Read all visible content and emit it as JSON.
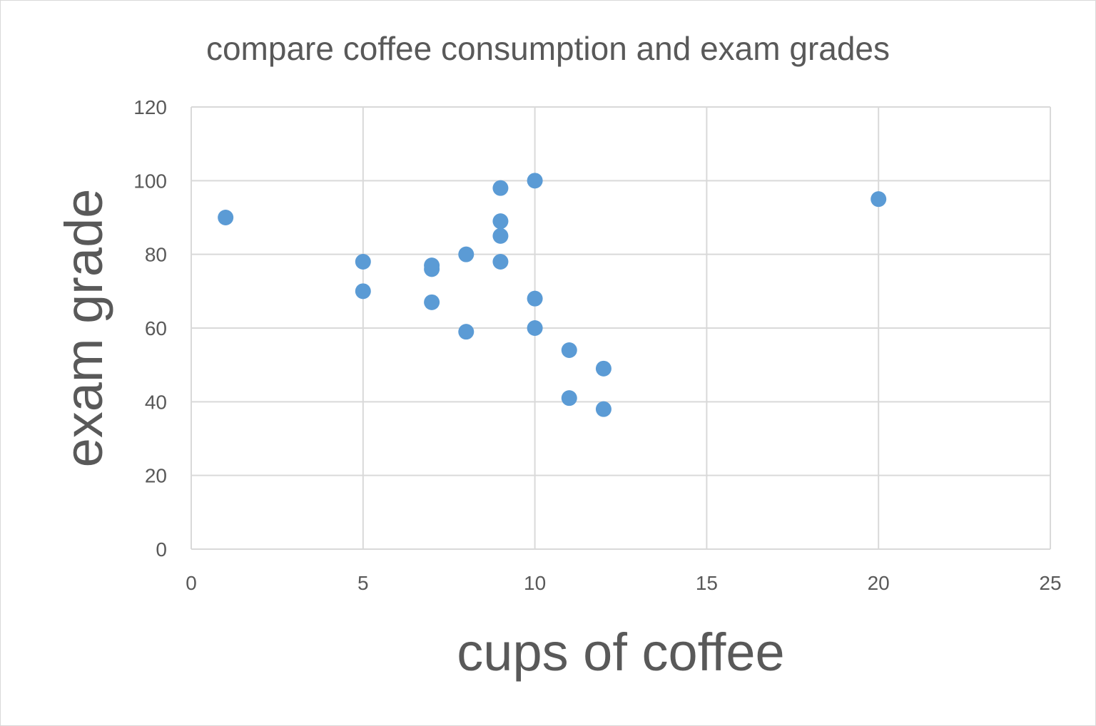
{
  "chart_data": {
    "type": "scatter",
    "title": "compare coffee consumption and exam grades",
    "xlabel": "cups of coffee",
    "ylabel": "exam grade",
    "xlim": [
      0,
      25
    ],
    "ylim": [
      0,
      120
    ],
    "xticks": [
      0,
      5,
      10,
      15,
      20,
      25
    ],
    "yticks": [
      0,
      20,
      40,
      60,
      80,
      100,
      120
    ],
    "grid": true,
    "legend": "none",
    "color": "#5b9bd5",
    "points": [
      {
        "x": 1,
        "y": 90
      },
      {
        "x": 5,
        "y": 78
      },
      {
        "x": 5,
        "y": 70
      },
      {
        "x": 7,
        "y": 77
      },
      {
        "x": 7,
        "y": 76
      },
      {
        "x": 7,
        "y": 67
      },
      {
        "x": 8,
        "y": 80
      },
      {
        "x": 8,
        "y": 59
      },
      {
        "x": 9,
        "y": 98
      },
      {
        "x": 9,
        "y": 89
      },
      {
        "x": 9,
        "y": 85
      },
      {
        "x": 9,
        "y": 78
      },
      {
        "x": 10,
        "y": 100
      },
      {
        "x": 10,
        "y": 68
      },
      {
        "x": 10,
        "y": 60
      },
      {
        "x": 11,
        "y": 54
      },
      {
        "x": 11,
        "y": 41
      },
      {
        "x": 12,
        "y": 49
      },
      {
        "x": 12,
        "y": 38
      },
      {
        "x": 20,
        "y": 95
      }
    ]
  }
}
